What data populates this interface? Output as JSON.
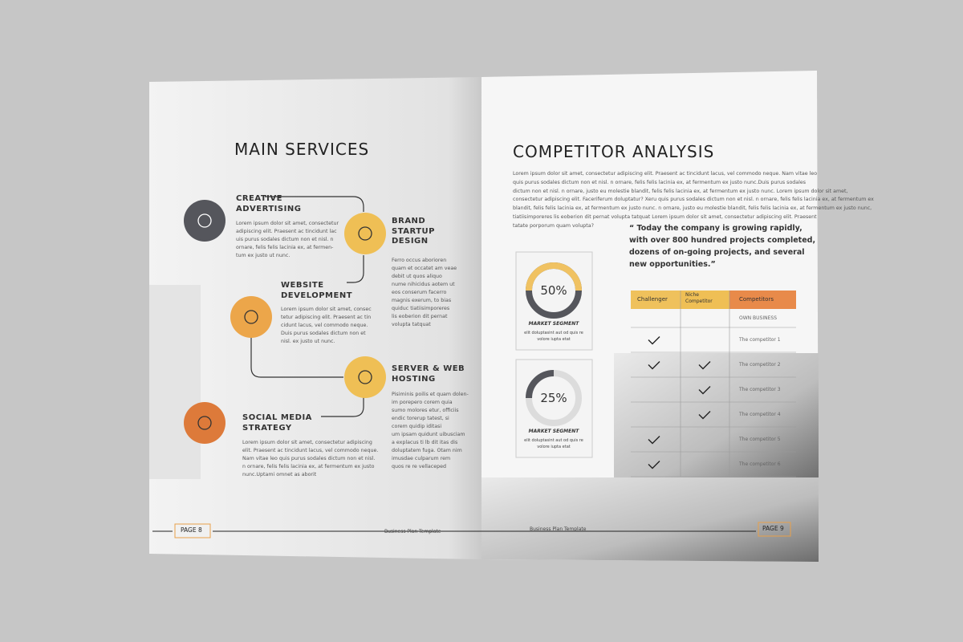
{
  "left_page": {
    "title": "MAIN SERVICES",
    "services": [
      {
        "title": [
          "CREATIVE",
          "ADVERTISING"
        ],
        "body": [
          "Lorem ipsum dolor sit amet, consectetur",
          "adipiscing elit. Praesent ac tincidunt lac",
          "uis purus sodales dictum non et nisl. n",
          "ornare, felis felis lacinia ex, at fermen-",
          "tum ex justo ut nunc."
        ]
      },
      {
        "title": [
          "BRAND",
          "STARTUP",
          "DESIGN"
        ],
        "body": [
          "Ferro occus aborioren",
          "quam et occatet am veae",
          "debit ut quos aliquo",
          "nume nihicidus aotem ut",
          "eos conserum facerro",
          "magnis exerum, to bias",
          "quiduc tiatiisimporeres",
          "lis eoberion dit pernat",
          "volupta tatquat"
        ]
      },
      {
        "title": [
          "WEBSITE",
          "DEVELOPMENT"
        ],
        "body": [
          "Lorem ipsum dolor sit amet, consec",
          "tetur adipiscing elit. Praesent ac tin",
          "cidunt lacus, vel commodo neque.",
          "Duis purus sodales dictum non et",
          "nisl.  ex justo ut nunc."
        ]
      },
      {
        "title": [
          "SERVER & WEB",
          "HOSTING"
        ],
        "body": [
          "Pisiminis poilis et quam dolen-",
          "im porepero corem quia",
          "sumo molores etur, officiis",
          "endic torerup tatest, si",
          "corem quidip iditasi",
          "um ipsam quidunt uibusciam",
          "a explacus ti lb dit itas dis",
          "doluptatem fuga. Otam nim",
          "imusdae culparum rem",
          "quos re re vellaceped"
        ]
      },
      {
        "title": [
          "SOCIAL MEDIA",
          "STRATEGY"
        ],
        "body": [
          "Lorem ipsum dolor sit amet, consectetur adipiscing",
          "elit. Praesent ac tincidunt lacus, vel commodo neque.",
          "Nam vitae leo quis purus sodales dictum non et nisl.",
          "n ornare, felis felis lacinia ex, at fermentum ex justo",
          "nunc.Uptami omnet as aborit"
        ]
      }
    ],
    "footer": {
      "page": "PAGE 8",
      "label": "Business Plan Template"
    }
  },
  "right_page": {
    "title": "COMPETITOR ANALYSIS",
    "intro": [
      "Lorem ipsum dolor sit amet, consectetur adipiscing elit. Praesent ac tincidunt lacus, vel commodo neque. Nam vitae leo",
      "quis purus sodales dictum non et nisl. n ornare, felis felis lacinia ex, at fermentum ex justo nunc.Duis purus sodales",
      "dictum non et nisl. n ornare, justo eu molestie blandit, felis felis lacinia ex, at fermentum ex justo nunc. Lorem ipsum dolor sit amet,",
      "consectetur adipiscing elit. Faceriferum doluptatur? Xeru quis purus sodales dictum non et nisl. n ornare, felis felis lacinia ex, at fermentum ex",
      "blandit, felis felis lacinia ex, at fermentum ex justo nunc. n ornare, justo eu molestie blandit, felis felis lacinia ex, at fermentum ex justo nunc,",
      "tiatiisimporeres lis eoberion dit pernat volupta tatquat Lorem ipsum dolor sit amet, consectetur adipiscing elit. Praesent",
      "tatate porporum quam volupta?"
    ],
    "quote": [
      "“ Today the company is growing rapidly,",
      "with over 800 hundred projects completed,",
      "dozens of on-going projects, and several",
      "new opportunities.”"
    ],
    "segments": [
      {
        "value": 50,
        "label": "50%",
        "caption": "MARKET SEGMENT",
        "note": [
          "elit doluptasint aut od quis re",
          "volore iupta etat"
        ],
        "color": "#f0c262",
        "rest_color": "#55565c"
      },
      {
        "value": 25,
        "label": "25%",
        "caption": "MARKET SEGMENT",
        "note": [
          "elit doluptasint aut od quis re",
          "volore iupta etat"
        ],
        "color": "#55565c",
        "rest_color": "#dcdcdc"
      }
    ],
    "table": {
      "headers": [
        "Challenger",
        [
          "Niche",
          "Competitor"
        ],
        "Competitors"
      ],
      "rows": [
        {
          "label": "OWN BUSINESS",
          "challenger": false,
          "niche": false
        },
        {
          "label": "The competitor 1",
          "challenger": true,
          "niche": false
        },
        {
          "label": "The competitor 2",
          "challenger": true,
          "niche": true
        },
        {
          "label": "The competitor 3",
          "challenger": false,
          "niche": true
        },
        {
          "label": "The competitor 4",
          "challenger": false,
          "niche": true
        },
        {
          "label": "The competitor 5",
          "challenger": true,
          "niche": false
        },
        {
          "label": "The competitor 6",
          "challenger": true,
          "niche": false
        }
      ]
    },
    "footer": {
      "label": "Business Plan Template",
      "page": "PAGE 9"
    }
  }
}
